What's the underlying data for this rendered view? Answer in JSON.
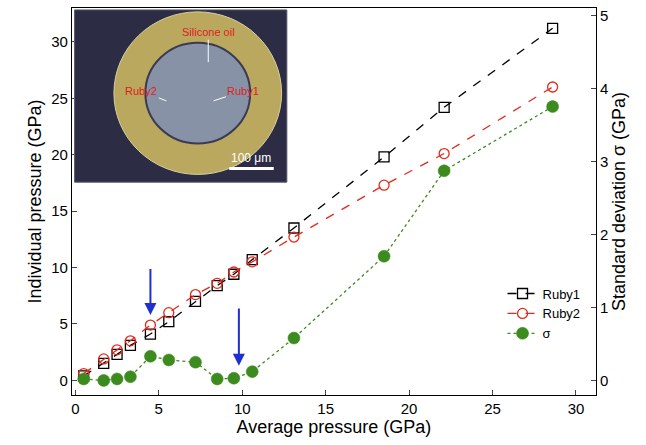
{
  "chart_data": {
    "type": "line",
    "x_label": "Average pressure (GPa)",
    "y_label": "Individual pressure (GPa)",
    "y2_label": "Standard deviation σ (GPa)",
    "x": [
      0.5,
      1.7,
      2.5,
      3.3,
      4.5,
      5.6,
      7.2,
      8.5,
      9.5,
      10.6,
      13.1,
      18.5,
      22.1,
      28.6
    ],
    "series": [
      {
        "name": "Ruby1",
        "color": "#000000",
        "marker": "square-open",
        "line_style": "dash",
        "values": [
          0.4,
          1.5,
          2.3,
          3.1,
          4.1,
          5.2,
          7.0,
          8.4,
          9.4,
          10.7,
          13.5,
          19.8,
          24.2,
          31.2
        ]
      },
      {
        "name": "Ruby2",
        "color": "#e32a1c",
        "marker": "circle-open",
        "line_style": "dash",
        "values": [
          0.6,
          1.9,
          2.7,
          3.5,
          4.9,
          6.0,
          7.6,
          8.6,
          9.6,
          10.5,
          12.7,
          17.3,
          20.1,
          26.0
        ]
      },
      {
        "name": "σ",
        "color": "#3d8b1e",
        "marker": "circle",
        "line_style": "dot",
        "axis": "y2",
        "values": [
          0.02,
          0.0,
          0.02,
          0.05,
          0.33,
          0.28,
          0.25,
          0.02,
          0.03,
          0.12,
          0.58,
          1.7,
          2.87,
          3.75
        ]
      }
    ],
    "xlim": [
      -0.2,
      31.2
    ],
    "xticks": [
      0,
      5,
      10,
      15,
      20,
      25,
      30
    ],
    "ylim": [
      -1.3,
      33
    ],
    "yticks": [
      0,
      5,
      10,
      15,
      20,
      25,
      30
    ],
    "y2lim": [
      -0.2,
      5.1
    ],
    "y2ticks": [
      0,
      1,
      2,
      3,
      4,
      5
    ],
    "grid": false,
    "legend": "lower right",
    "arrows": [
      {
        "x": 4.5,
        "y_from": 10,
        "y_to": 5.8,
        "color": "#1f2fd0"
      },
      {
        "x": 9.8,
        "y_from": 6.5,
        "y_to": 1.3,
        "color": "#1f2fd0"
      }
    ],
    "inset": {
      "labels": [
        "Silicone oil",
        "Ruby2",
        "Ruby1"
      ],
      "scale_bar": "100 μm"
    }
  }
}
